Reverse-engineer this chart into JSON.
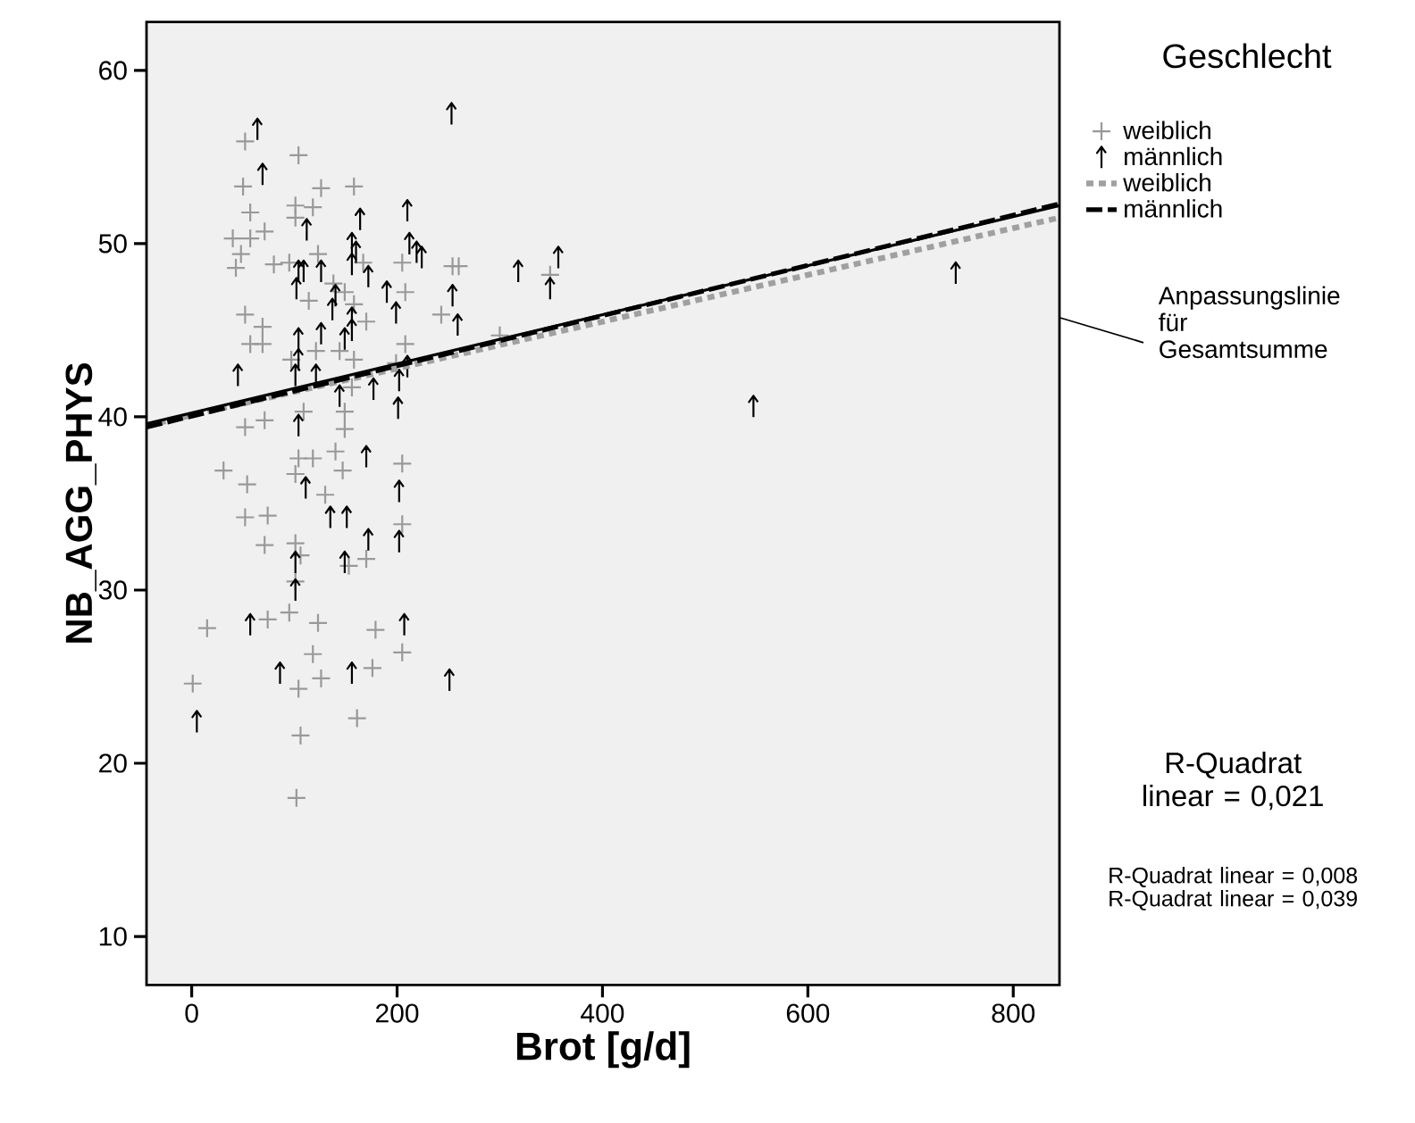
{
  "chart_data": {
    "type": "scatter",
    "xlabel": "Brot [g/d]",
    "ylabel": "NB_AGG_PHYS",
    "legend_title": "Geschlecht",
    "xlim": [
      -44,
      845
    ],
    "ylim": [
      7.2,
      62.8
    ],
    "xticks": [
      0,
      200,
      400,
      600,
      800
    ],
    "yticks": [
      10,
      20,
      30,
      40,
      50,
      60
    ],
    "legend": "right",
    "annotations": [
      "R-Quadrat linear = 0,021",
      "R-Quadrat linear = 0,008",
      "R-Quadrat linear = 0,039"
    ],
    "series": [
      {
        "name": "weiblich",
        "marker": "cross",
        "color": "#999999",
        "x": [
          52,
          104,
          50,
          126,
          158,
          101,
          118,
          57,
          101,
          40,
          57,
          71,
          48,
          43,
          80,
          95,
          123,
          167,
          205,
          254,
          260,
          138,
          149,
          208,
          114,
          158,
          243,
          52,
          170,
          69,
          57,
          69,
          121,
          144,
          208,
          97,
          158,
          199,
          156,
          109,
          71,
          52,
          149,
          149,
          104,
          118,
          140,
          147,
          31,
          54,
          101,
          130,
          205,
          52,
          74,
          205,
          71,
          101,
          170,
          106,
          153,
          101,
          74,
          95,
          123,
          15,
          179,
          118,
          205,
          176,
          126,
          104,
          1,
          161,
          106,
          102,
          300,
          349
        ],
        "values": [
          55.9,
          55.1,
          53.3,
          53.2,
          53.3,
          52.2,
          52.1,
          51.8,
          51.5,
          50.3,
          50.3,
          50.7,
          49.4,
          48.6,
          48.8,
          48.9,
          49.4,
          48.9,
          48.9,
          48.7,
          48.7,
          47.7,
          47.2,
          47.2,
          46.7,
          46.5,
          45.9,
          45.9,
          45.5,
          45.2,
          44.2,
          44.2,
          43.8,
          43.8,
          44.2,
          43.3,
          43.3,
          43.1,
          41.7,
          40.3,
          39.8,
          39.4,
          40.3,
          39.3,
          37.6,
          37.6,
          38.0,
          36.9,
          36.9,
          36.1,
          36.7,
          35.5,
          37.3,
          34.2,
          34.3,
          33.8,
          32.6,
          32.7,
          31.8,
          32.0,
          31.4,
          30.5,
          28.3,
          28.7,
          28.1,
          27.8,
          27.7,
          26.3,
          26.4,
          25.5,
          24.9,
          24.3,
          24.6,
          22.6,
          21.6,
          18.0,
          44.7,
          48.2
        ]
      },
      {
        "name": "männlich",
        "color": "#000000",
        "x": [
          64,
          69,
          253,
          112,
          164,
          210,
          156,
          160,
          212,
          219,
          224,
          318,
          104,
          109,
          126,
          156,
          172,
          190,
          102,
          140,
          254,
          137,
          199,
          156,
          259,
          104,
          126,
          149,
          156,
          45,
          101,
          104,
          121,
          210,
          202,
          144,
          177,
          201,
          104,
          170,
          111,
          135,
          151,
          202,
          202,
          172,
          101,
          149,
          101,
          57,
          207,
          86,
          156,
          251,
          5,
          357,
          349,
          744,
          547
        ],
        "values": [
          56.6,
          54.0,
          57.5,
          50.8,
          51.4,
          51.9,
          50.0,
          49.5,
          50.0,
          49.5,
          49.2,
          48.4,
          48.4,
          48.4,
          48.4,
          48.8,
          48.1,
          47.2,
          47.4,
          47.0,
          47.0,
          46.2,
          46.0,
          45.7,
          45.3,
          44.5,
          44.8,
          44.5,
          45.0,
          42.4,
          42.4,
          43.3,
          42.4,
          42.9,
          42.1,
          41.2,
          41.6,
          40.5,
          39.5,
          37.7,
          35.9,
          34.2,
          34.2,
          35.7,
          32.8,
          32.9,
          31.6,
          31.6,
          30.0,
          28.0,
          28.0,
          25.2,
          25.2,
          24.8,
          22.4,
          49.2,
          47.4,
          48.3,
          40.6
        ]
      },
      {
        "name": "weiblich",
        "type": "line",
        "line_style": "dotted",
        "color": "#a0a0a0",
        "x": [
          -44,
          845
        ],
        "values": [
          39.5,
          51.5
        ]
      },
      {
        "name": "männlich",
        "type": "line",
        "line_style": "dashed",
        "color": "#000000",
        "x": [
          -44,
          845
        ],
        "values": [
          39.4,
          52.3
        ]
      },
      {
        "name": "Anpassungslinie für Gesamtsumme",
        "type": "line",
        "line_style": "solid",
        "color": "#000000",
        "x": [
          -44,
          845
        ],
        "values": [
          39.6,
          52.2
        ]
      }
    ]
  }
}
